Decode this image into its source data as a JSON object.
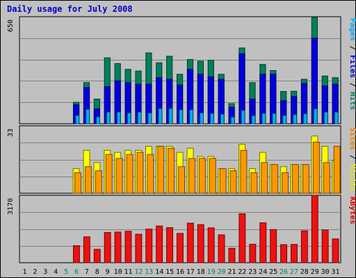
{
  "chart_data": {
    "type": "bar",
    "title": "Daily usage for July 2008",
    "categories": [
      "1",
      "2",
      "3",
      "4",
      "5",
      "6",
      "7",
      "8",
      "9",
      "10",
      "11",
      "12",
      "13",
      "14",
      "15",
      "16",
      "17",
      "18",
      "19",
      "20",
      "21",
      "22",
      "23",
      "24",
      "25",
      "26",
      "27",
      "28",
      "29",
      "30",
      "31"
    ],
    "weekend_days": [
      "5",
      "6",
      "12",
      "13",
      "19",
      "20",
      "26",
      "27"
    ],
    "panels": [
      {
        "max_label": "650",
        "max": 650,
        "right_label_parts": [
          {
            "text": "Pages",
            "color": "#00a8f8"
          },
          {
            "text": " / ",
            "color": "#000000"
          },
          {
            "text": "Files",
            "color": "#0000d8"
          },
          {
            "text": " / ",
            "color": "#000000"
          },
          {
            "text": "Hits",
            "color": "#008060"
          }
        ],
        "series": [
          {
            "name": "Hits",
            "color": "#00805c",
            "values": [
              null,
              null,
              null,
              null,
              null,
              130,
              250,
              150,
              400,
              365,
              330,
              320,
              430,
              370,
              410,
              300,
              390,
              380,
              385,
              300,
              122,
              460,
              250,
              360,
              323,
              196,
              197,
              270,
              645,
              290,
              280
            ]
          },
          {
            "name": "Files",
            "color": "#0000e0",
            "values": [
              null,
              null,
              null,
              null,
              null,
              115,
              220,
              90,
              225,
              260,
              250,
              240,
              240,
              280,
              270,
              235,
              330,
              300,
              285,
              270,
              100,
              425,
              150,
              300,
              300,
              140,
              165,
              245,
              520,
              230,
              240
            ]
          },
          {
            "name": "Pages",
            "color": "#00b0f8",
            "values": [
              null,
              null,
              null,
              null,
              null,
              50,
              86,
              41,
              71,
              71,
              65,
              70,
              65,
              92,
              92,
              85,
              84,
              65,
              62,
              58,
              40,
              80,
              48,
              62,
              62,
              50,
              55,
              60,
              90,
              70,
              70
            ]
          }
        ]
      },
      {
        "max_label": "33",
        "max": 33,
        "right_label_parts": [
          {
            "text": "Sites",
            "color": "#f08000"
          },
          {
            "text": " / ",
            "color": "#000000"
          },
          {
            "text": "Visits",
            "color": "#e8e800"
          }
        ],
        "series": [
          {
            "name": "Visits",
            "color": "#ffff00",
            "values": [
              null,
              null,
              null,
              null,
              null,
              12,
              21,
              15,
              21,
              20,
              21,
              21,
              23,
              23,
              23,
              20,
              22,
              18,
              18,
              12,
              12,
              24,
              12,
              20,
              14,
              13,
              14,
              14,
              28,
              23,
              16
            ]
          },
          {
            "name": "Sites",
            "color": "#ff9800",
            "values": [
              null,
              null,
              null,
              null,
              null,
              10,
              13,
              11,
              19,
              17,
              19,
              20,
              19,
              23,
              22,
              13,
              17,
              17,
              17,
              12,
              11,
              21,
              10,
              15,
              14,
              10,
              14,
              14,
              25,
              15,
              23
            ]
          }
        ]
      },
      {
        "max_label": "3170",
        "max": 3170,
        "right_label_parts": [
          {
            "text": "KBytes",
            "color": "#e00000"
          }
        ],
        "series": [
          {
            "name": "KBytes",
            "color": "#f01010",
            "values": [
              null,
              null,
              null,
              null,
              null,
              800,
              1220,
              630,
              1420,
              1440,
              1480,
              1340,
              1580,
              1730,
              1650,
              1380,
              1860,
              1790,
              1640,
              1310,
              680,
              2300,
              870,
              1880,
              1560,
              850,
              860,
              1500,
              3170,
              1540,
              1120
            ]
          }
        ]
      }
    ]
  }
}
